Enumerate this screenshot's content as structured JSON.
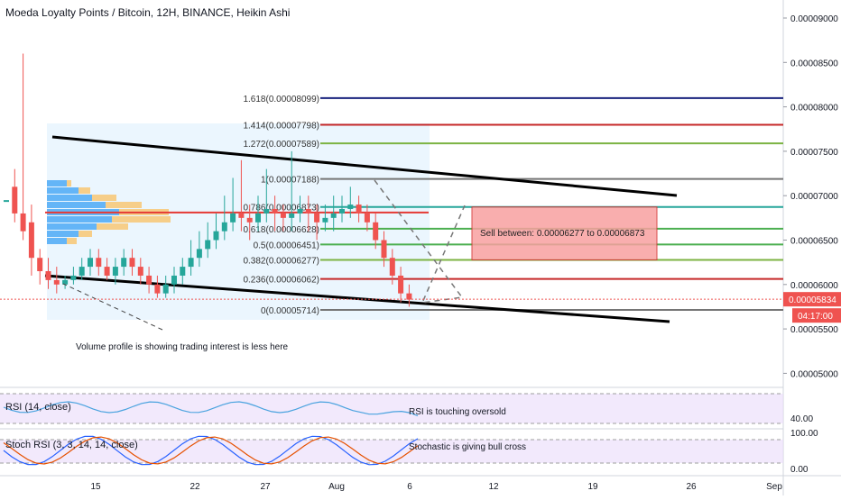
{
  "header": {
    "title": "Moeda Loyalty Points / Bitcoin, 12H, BINANCE, Heikin Ashi"
  },
  "price_axis": {
    "ticks": [
      "0.00009000",
      "0.00008500",
      "0.00008000",
      "0.00007500",
      "0.00007000",
      "0.00006500",
      "0.00006000",
      "0.00005500",
      "0.00005000"
    ],
    "last_price": "0.00005834",
    "countdown": "04:17:00"
  },
  "time_axis": {
    "ticks": [
      "15",
      "22",
      "27",
      "Aug",
      "6",
      "12",
      "19",
      "26",
      "Sep"
    ]
  },
  "fib_levels": [
    {
      "ratio": "1.618",
      "price": 8.099e-05,
      "label": "1.618(0.00008099)",
      "color": "#1a237e"
    },
    {
      "ratio": "1.414",
      "price": 7.798e-05,
      "label": "1.414(0.00007798)",
      "color": "#c62828"
    },
    {
      "ratio": "1.272",
      "price": 7.589e-05,
      "label": "1.272(0.00007589)",
      "color": "#7cb342"
    },
    {
      "ratio": "1",
      "price": 7.188e-05,
      "label": "1(0.00007188)",
      "color": "#757575"
    },
    {
      "ratio": "0.786",
      "price": 6.873e-05,
      "label": "0.786(0.00006873)",
      "color": "#26a69a"
    },
    {
      "ratio": "0.618",
      "price": 6.628e-05,
      "label": "0.618(0.00006628)",
      "color": "#4caf50"
    },
    {
      "ratio": "0.5",
      "price": 6.451e-05,
      "label": "0.5(0.00006451)",
      "color": "#4caf50"
    },
    {
      "ratio": "0.382",
      "price": 6.277e-05,
      "label": "0.382(0.00006277)",
      "color": "#7cb342"
    },
    {
      "ratio": "0.236",
      "price": 6.062e-05,
      "label": "0.236(0.00006062)",
      "color": "#c62828"
    },
    {
      "ratio": "0",
      "price": 5.714e-05,
      "label": "0(0.00005714)",
      "color": "#757575"
    }
  ],
  "annotations": {
    "sell_box": "Sell between: 0.00006277 to 0.00006873",
    "volume_note": "Volume profile is showing trading interest is less here",
    "rsi_note": "RSI is touching oversold",
    "stoch_note": "Stochastic is giving bull cross"
  },
  "rsi_panel": {
    "label": "RSI (14, close)",
    "axis_value": "40.00"
  },
  "stoch_panel": {
    "label": "Stoch RSI (3, 3, 14, 14, close)",
    "axis_top": "100.00",
    "axis_bottom": "0.00"
  },
  "colors": {
    "up": "#26a69a",
    "down": "#ef5350",
    "channel": "#000000",
    "sell_box": "#f8a0a0",
    "volume_zone": "#e3f2fd",
    "panel_band": "#ede0fb",
    "rsi_line": "#4aa3df",
    "stoch_k": "#2962ff",
    "stoch_d": "#e65100"
  },
  "chart_data": {
    "type": "candlestick",
    "title": "Moeda Loyalty Points / Bitcoin, 12H, BINANCE, Heikin Ashi",
    "ylim": [
      4.85e-05,
      9.15e-05
    ],
    "x_ticks": [
      "15",
      "22",
      "27",
      "Aug",
      "6",
      "12",
      "19",
      "26",
      "Sep"
    ],
    "y_ticks": [
      9e-05,
      8.5e-05,
      8e-05,
      7.5e-05,
      7e-05,
      6.5e-05,
      6e-05,
      5.5e-05,
      5e-05
    ],
    "candles": [
      {
        "o": 6.95,
        "c": 6.95,
        "h": 6.95,
        "l": 6.95
      },
      {
        "o": 7.1,
        "c": 6.8,
        "h": 7.3,
        "l": 6.7
      },
      {
        "o": 6.8,
        "c": 6.6,
        "h": 8.6,
        "l": 6.5
      },
      {
        "o": 6.7,
        "c": 6.3,
        "h": 6.9,
        "l": 6.1
      },
      {
        "o": 6.3,
        "c": 6.15,
        "h": 6.4,
        "l": 6.0
      },
      {
        "o": 6.15,
        "c": 6.05,
        "h": 6.3,
        "l": 5.95
      },
      {
        "o": 6.05,
        "c": 6.0,
        "h": 6.2,
        "l": 5.9
      },
      {
        "o": 6.0,
        "c": 6.05,
        "h": 6.1,
        "l": 5.95
      },
      {
        "o": 6.05,
        "c": 6.1,
        "h": 6.2,
        "l": 6.0
      },
      {
        "o": 6.1,
        "c": 6.2,
        "h": 6.3,
        "l": 6.05
      },
      {
        "o": 6.2,
        "c": 6.3,
        "h": 6.4,
        "l": 6.1
      },
      {
        "o": 6.3,
        "c": 6.2,
        "h": 6.4,
        "l": 6.1
      },
      {
        "o": 6.2,
        "c": 6.1,
        "h": 6.3,
        "l": 6.05
      },
      {
        "o": 6.1,
        "c": 6.2,
        "h": 6.3,
        "l": 6.0
      },
      {
        "o": 6.2,
        "c": 6.3,
        "h": 6.4,
        "l": 6.1
      },
      {
        "o": 6.3,
        "c": 6.2,
        "h": 6.4,
        "l": 6.1
      },
      {
        "o": 6.2,
        "c": 6.1,
        "h": 6.3,
        "l": 6.0
      },
      {
        "o": 6.1,
        "c": 6.0,
        "h": 6.2,
        "l": 5.9
      },
      {
        "o": 6.0,
        "c": 5.9,
        "h": 6.1,
        "l": 5.85
      },
      {
        "o": 5.9,
        "c": 6.0,
        "h": 6.1,
        "l": 5.85
      },
      {
        "o": 6.0,
        "c": 6.1,
        "h": 6.2,
        "l": 5.9
      },
      {
        "o": 6.1,
        "c": 6.2,
        "h": 6.3,
        "l": 6.0
      },
      {
        "o": 6.2,
        "c": 6.3,
        "h": 6.5,
        "l": 6.1
      },
      {
        "o": 6.3,
        "c": 6.4,
        "h": 6.6,
        "l": 6.2
      },
      {
        "o": 6.4,
        "c": 6.5,
        "h": 6.7,
        "l": 6.3
      },
      {
        "o": 6.5,
        "c": 6.6,
        "h": 6.8,
        "l": 6.4
      },
      {
        "o": 6.6,
        "c": 6.7,
        "h": 7.0,
        "l": 6.5
      },
      {
        "o": 6.7,
        "c": 6.8,
        "h": 7.2,
        "l": 6.6
      },
      {
        "o": 6.8,
        "c": 6.75,
        "h": 7.4,
        "l": 6.6
      },
      {
        "o": 6.75,
        "c": 6.7,
        "h": 6.9,
        "l": 6.5
      },
      {
        "o": 6.7,
        "c": 6.8,
        "h": 7.0,
        "l": 6.6
      },
      {
        "o": 6.8,
        "c": 6.85,
        "h": 7.3,
        "l": 6.7
      },
      {
        "o": 6.85,
        "c": 6.8,
        "h": 7.0,
        "l": 6.6
      },
      {
        "o": 6.8,
        "c": 6.75,
        "h": 6.9,
        "l": 6.6
      },
      {
        "o": 6.75,
        "c": 6.8,
        "h": 7.5,
        "l": 6.6
      },
      {
        "o": 6.8,
        "c": 6.85,
        "h": 7.0,
        "l": 6.7
      },
      {
        "o": 6.85,
        "c": 6.8,
        "h": 7.0,
        "l": 6.6
      },
      {
        "o": 6.8,
        "c": 6.7,
        "h": 6.9,
        "l": 6.5
      },
      {
        "o": 6.7,
        "c": 6.75,
        "h": 6.9,
        "l": 6.6
      },
      {
        "o": 6.75,
        "c": 6.8,
        "h": 7.0,
        "l": 6.6
      },
      {
        "o": 6.8,
        "c": 6.85,
        "h": 7.0,
        "l": 6.7
      },
      {
        "o": 6.85,
        "c": 6.9,
        "h": 7.1,
        "l": 6.75
      },
      {
        "o": 6.9,
        "c": 6.8,
        "h": 7.0,
        "l": 6.7
      },
      {
        "o": 6.8,
        "c": 6.7,
        "h": 6.9,
        "l": 6.6
      },
      {
        "o": 6.7,
        "c": 6.5,
        "h": 6.8,
        "l": 6.4
      },
      {
        "o": 6.5,
        "c": 6.3,
        "h": 6.6,
        "l": 6.2
      },
      {
        "o": 6.3,
        "c": 6.1,
        "h": 6.4,
        "l": 6.0
      },
      {
        "o": 6.1,
        "c": 5.9,
        "h": 6.2,
        "l": 5.8
      },
      {
        "o": 5.9,
        "c": 5.83,
        "h": 6.0,
        "l": 5.75
      }
    ]
  }
}
